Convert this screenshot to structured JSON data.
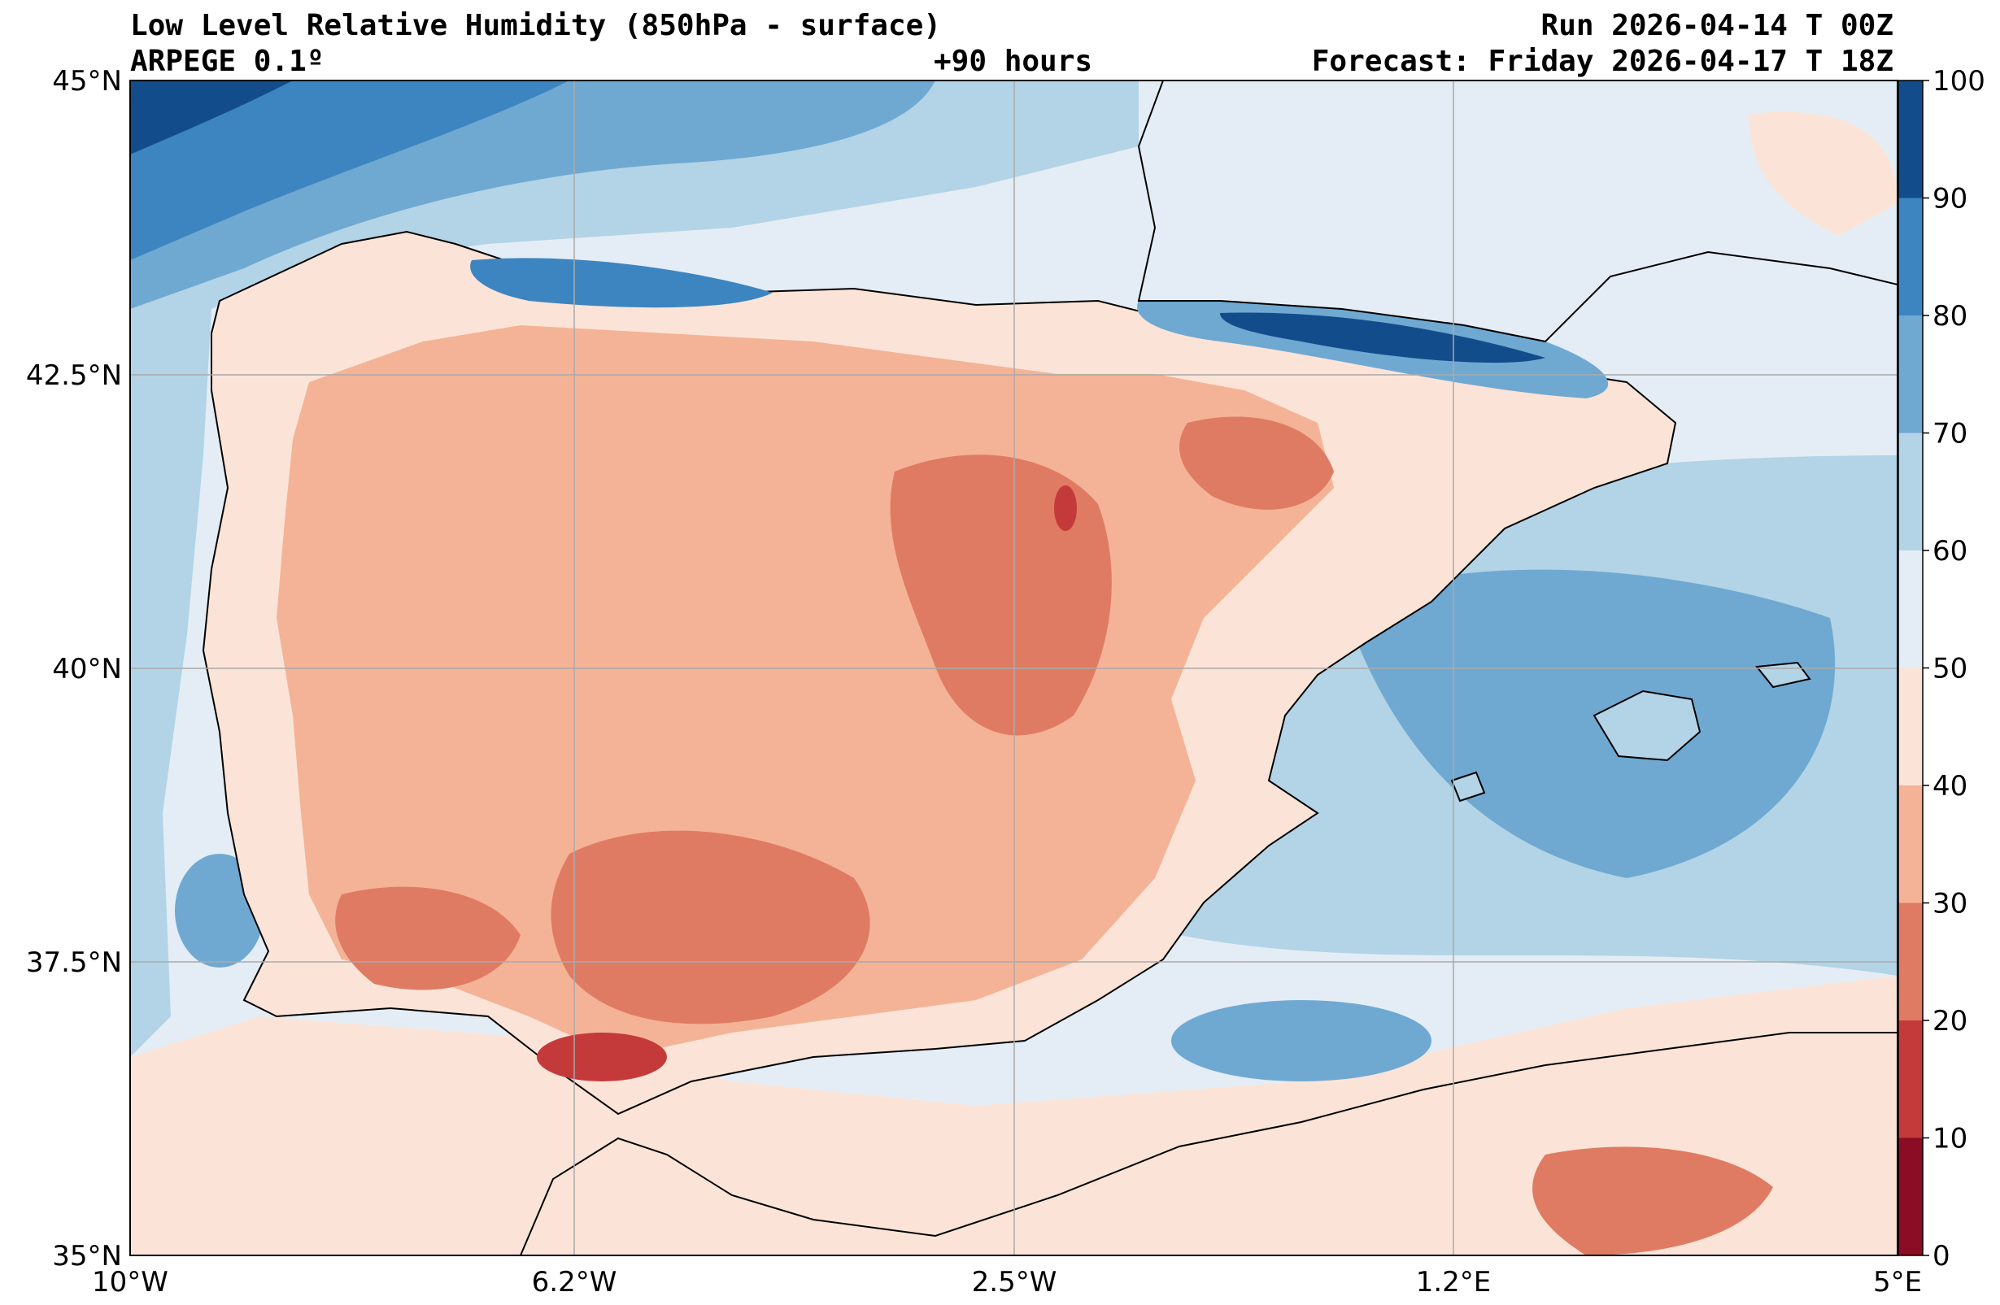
{
  "header": {
    "title": "Low Level Relative Humidity (850hPa - surface)",
    "model": "ARPEGE 0.1º",
    "lead_time": "+90 hours",
    "run": "Run 2026-04-14 T 00Z",
    "forecast": "Forecast: Friday 2026-04-17 T 18Z"
  },
  "axes": {
    "x_ticks": [
      {
        "label": "10°W",
        "lon": -10
      },
      {
        "label": "6.2°W",
        "lon": -6.25
      },
      {
        "label": "2.5°W",
        "lon": -2.5
      },
      {
        "label": "1.2°E",
        "lon": 1.25
      },
      {
        "label": "5°E",
        "lon": 5
      }
    ],
    "y_ticks": [
      {
        "label": "45°N",
        "lat": 45
      },
      {
        "label": "42.5°N",
        "lat": 42.5
      },
      {
        "label": "40°N",
        "lat": 40
      },
      {
        "label": "37.5°N",
        "lat": 37.5
      },
      {
        "label": "35°N",
        "lat": 35
      }
    ],
    "lon_range": [
      -10,
      5
    ],
    "lat_range": [
      35,
      45
    ]
  },
  "colorbar": {
    "levels": [
      {
        "min": 0,
        "max": 10,
        "color": "#8a0c25"
      },
      {
        "min": 10,
        "max": 20,
        "color": "#c43a3a"
      },
      {
        "min": 20,
        "max": 30,
        "color": "#e07b63"
      },
      {
        "min": 30,
        "max": 40,
        "color": "#f4b397"
      },
      {
        "min": 40,
        "max": 50,
        "color": "#fbe4d7"
      },
      {
        "min": 50,
        "max": 60,
        "color": "#e4edf5"
      },
      {
        "min": 60,
        "max": 70,
        "color": "#b3d4e6"
      },
      {
        "min": 70,
        "max": 80,
        "color": "#6fa9d2"
      },
      {
        "min": 80,
        "max": 90,
        "color": "#3d85c0"
      },
      {
        "min": 90,
        "max": 100,
        "color": "#134c8a"
      }
    ],
    "tick_labels": [
      "0",
      "10",
      "20",
      "30",
      "40",
      "50",
      "60",
      "70",
      "80",
      "90",
      "100"
    ]
  }
}
